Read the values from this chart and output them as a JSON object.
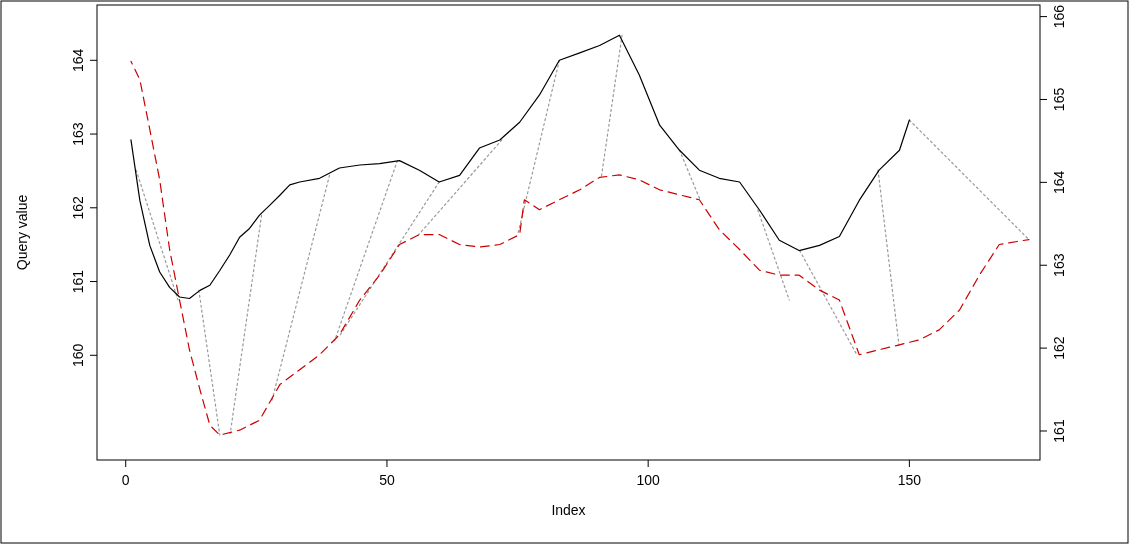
{
  "chart_data": {
    "type": "line",
    "xlabel": "Index",
    "ylabel": "Query value",
    "xlim": [
      -5.5,
      175
    ],
    "xticks": [
      0,
      50,
      100,
      150
    ],
    "ylim": [
      158.58,
      164.75
    ],
    "yticks": [
      160,
      161,
      162,
      163,
      164
    ],
    "y2lim": [
      160.65,
      166.14
    ],
    "y2ticks": [
      161,
      162,
      163,
      164,
      165,
      166
    ],
    "grid": false,
    "series": [
      {
        "color": "#999999",
        "line_style": "dotted",
        "x": [
          2,
          10,
          null,
          14,
          18,
          null,
          26,
          20,
          null,
          39,
          28,
          null,
          52,
          40,
          null,
          60,
          41,
          null,
          72,
          56,
          null,
          83,
          75,
          null,
          95,
          91,
          null,
          106,
          110,
          null,
          121,
          127,
          null,
          129,
          140,
          null,
          144,
          148,
          null,
          150,
          173
        ],
        "values": [
          162.51,
          160.75,
          null,
          160.88,
          158.92,
          null,
          161.9,
          158.94,
          null,
          162.44,
          159.39,
          null,
          162.64,
          160.2,
          null,
          162.35,
          160.27,
          null,
          162.92,
          161.63,
          null,
          164,
          161.63,
          null,
          164.34,
          162.4,
          null,
          162.78,
          162.1,
          null,
          161.97,
          160.75,
          null,
          161.42,
          160,
          null,
          162.51,
          160.14,
          null,
          163.19,
          161.56
        ]
      },
      {
        "color": "#000000",
        "line_style": "solid",
        "x": [
          1,
          2.7,
          4.6,
          6.5,
          8.4,
          10.3,
          12.2,
          14.2,
          16.1,
          18,
          19.9,
          21.8,
          23.7,
          25.6,
          27.5,
          29.5,
          31.4,
          33.3,
          37.1,
          40.9,
          44.8,
          48.6,
          52.4,
          56.2,
          60,
          63.9,
          67.7,
          71.6,
          75.4,
          79.2,
          83,
          86.9,
          90.7,
          94.5,
          98.3,
          102.2,
          106,
          109.8,
          113.6,
          117.5,
          121.3,
          125.1,
          128.9,
          132.8,
          136.6,
          140.4,
          144.2,
          148.1,
          150
        ],
        "values": [
          162.92,
          162.1,
          161.49,
          161.13,
          160.92,
          160.79,
          160.77,
          160.88,
          160.95,
          161.15,
          161.36,
          161.6,
          161.72,
          161.9,
          162.03,
          162.17,
          162.31,
          162.35,
          162.4,
          162.54,
          162.58,
          162.6,
          162.64,
          162.51,
          162.35,
          162.44,
          162.81,
          162.92,
          163.16,
          163.53,
          164,
          164.1,
          164.2,
          164.34,
          163.8,
          163.12,
          162.78,
          162.51,
          162.4,
          162.35,
          161.97,
          161.56,
          161.42,
          161.49,
          161.61,
          162.1,
          162.51,
          162.78,
          163.19
        ]
      },
      {
        "color": "#cc0000",
        "line_style": "dashed",
        "axis": "y2",
        "x": [
          1,
          2.7,
          4.6,
          6.5,
          8.4,
          10.3,
          12.2,
          14.2,
          16.1,
          18,
          21.8,
          25.6,
          29.5,
          33.3,
          37.1,
          40.9,
          44.8,
          48.6,
          52.4,
          56.2,
          60,
          63.9,
          67.7,
          71.6,
          75.4,
          76.3,
          79.2,
          83,
          86.9,
          90.7,
          94.5,
          98.3,
          102.2,
          109.8,
          113.6,
          117.5,
          121.3,
          125.1,
          128.9,
          132.8,
          136.6,
          140.4,
          144.2,
          148.1,
          151.9,
          155.7,
          159.6,
          163.4,
          167.2,
          172.9
        ],
        "values": [
          165.46,
          165.24,
          164.64,
          164.03,
          163.19,
          162.58,
          161.98,
          161.5,
          161.07,
          160.95,
          161.01,
          161.13,
          161.56,
          161.74,
          161.92,
          162.16,
          162.58,
          162.88,
          163.25,
          163.37,
          163.37,
          163.25,
          163.22,
          163.25,
          163.37,
          163.79,
          163.67,
          163.79,
          163.91,
          164.06,
          164.09,
          164.03,
          163.91,
          163.79,
          163.43,
          163.19,
          162.94,
          162.88,
          162.88,
          162.7,
          162.58,
          161.92,
          161.98,
          162.04,
          162.1,
          162.22,
          162.46,
          162.88,
          163.25,
          163.31
        ]
      }
    ]
  }
}
